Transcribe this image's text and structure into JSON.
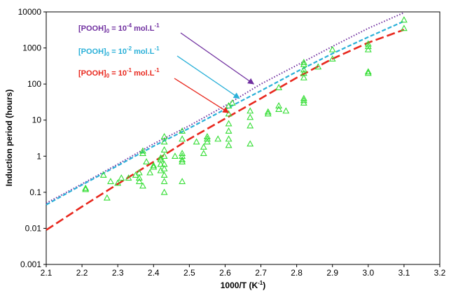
{
  "chart_data": {
    "type": "scatter",
    "xlabel_main": "1000/T (K",
    "xlabel_sup": "-1",
    "xlabel_close": ")",
    "ylabel": "Induction period (hours)",
    "xlim": [
      2.1,
      3.2
    ],
    "ylim": [
      0.001,
      10000
    ],
    "yscale": "log",
    "x_ticks": [
      "2.1",
      "2.2",
      "2.3",
      "2.4",
      "2.5",
      "2.6",
      "2.7",
      "2.8",
      "2.9",
      "3.0",
      "3.1",
      "3.2"
    ],
    "y_ticks": [
      "0.001",
      "0.01",
      "0.1",
      "1",
      "10",
      "100",
      "1000",
      "10000"
    ],
    "grid": false,
    "series": [
      {
        "kind": "curve",
        "style": "dotted",
        "color": "#7030a0",
        "x": [
          2.1,
          2.2,
          2.3,
          2.4,
          2.5,
          2.6,
          2.7,
          2.8,
          2.9,
          3.0,
          3.1
        ],
        "y": [
          0.05,
          0.17,
          0.6,
          2.2,
          7,
          25,
          100,
          330,
          1100,
          3500,
          9500
        ]
      },
      {
        "kind": "curve",
        "style": "dashed",
        "color": "#2ab0d8",
        "x": [
          2.1,
          2.2,
          2.3,
          2.4,
          2.5,
          2.6,
          2.7,
          2.8,
          2.9,
          3.0,
          3.1
        ],
        "y": [
          0.045,
          0.16,
          0.55,
          1.9,
          6,
          20,
          65,
          220,
          700,
          2000,
          5500
        ]
      },
      {
        "kind": "curve",
        "style": "long-dash",
        "color": "#e8281e",
        "x": [
          2.1,
          2.2,
          2.3,
          2.4,
          2.5,
          2.6,
          2.7,
          2.8,
          2.9,
          3.0,
          3.1
        ],
        "y": [
          0.009,
          0.04,
          0.17,
          0.7,
          3,
          11,
          40,
          150,
          500,
          1400,
          3200
        ]
      },
      {
        "kind": "points",
        "marker": "triangle",
        "color": "#33dd33",
        "x": [
          2.21,
          2.21,
          2.26,
          2.27,
          2.28,
          2.3,
          2.31,
          2.33,
          2.35,
          2.36,
          2.36,
          2.36,
          2.37,
          2.37,
          2.37,
          2.38,
          2.39,
          2.4,
          2.4,
          2.42,
          2.42,
          2.42,
          2.42,
          2.43,
          2.43,
          2.43,
          2.43,
          2.43,
          2.43,
          2.43,
          2.43,
          2.43,
          2.46,
          2.48,
          2.48,
          2.48,
          2.48,
          2.48,
          2.48,
          2.48,
          2.52,
          2.54,
          2.54,
          2.55,
          2.55,
          2.55,
          2.58,
          2.61,
          2.61,
          2.61,
          2.61,
          2.61,
          2.61,
          2.62,
          2.67,
          2.67,
          2.67,
          2.67,
          2.72,
          2.72,
          2.75,
          2.75,
          2.75,
          2.77,
          2.82,
          2.82,
          2.82,
          2.82,
          2.82,
          2.82,
          2.82,
          2.82,
          2.86,
          2.9,
          2.9,
          3.0,
          3.0,
          3.0,
          3.0,
          3.0,
          3.1,
          3.1
        ],
        "y": [
          0.12,
          0.13,
          0.3,
          0.07,
          0.2,
          0.18,
          0.25,
          0.25,
          0.3,
          0.2,
          0.25,
          0.35,
          0.15,
          1.2,
          1.4,
          0.7,
          0.35,
          0.5,
          0.55,
          0.4,
          0.6,
          0.8,
          0.9,
          0.1,
          0.2,
          0.3,
          0.45,
          0.6,
          1.0,
          1.5,
          2.5,
          3.5,
          1.0,
          0.2,
          0.7,
          0.8,
          1.0,
          1.2,
          3.0,
          5.0,
          2.5,
          1.2,
          1.8,
          2.5,
          3.0,
          3.5,
          3.0,
          2.0,
          3.0,
          5.0,
          8.0,
          15,
          25,
          30,
          2.2,
          7,
          12,
          18,
          15,
          17,
          20,
          25,
          80,
          18,
          30,
          35,
          40,
          150,
          200,
          250,
          350,
          400,
          300,
          500,
          900,
          200,
          220,
          900,
          1100,
          1300,
          3500,
          6000
        ]
      }
    ],
    "annotations": [
      {
        "prefix": "[POOH]",
        "sub": "0",
        "middle": " = 10",
        "sup": "-4",
        "suffix": " mol.L",
        "sup2": "-1",
        "color": "#7030a0",
        "arrow_to": [
          2.68,
          100
        ]
      },
      {
        "prefix": "[POOH]",
        "sub": "0",
        "middle": " = 10",
        "sup": "-2",
        "suffix": " mol.L",
        "sup2": "-1",
        "color": "#2ab0d8",
        "arrow_to": [
          2.64,
          40
        ]
      },
      {
        "prefix": "[POOH]",
        "sub": "0",
        "middle": " = 10",
        "sup": "-1",
        "suffix": " mol.L",
        "sup2": "-1",
        "color": "#e8281e",
        "arrow_to": [
          2.61,
          16
        ]
      }
    ]
  }
}
